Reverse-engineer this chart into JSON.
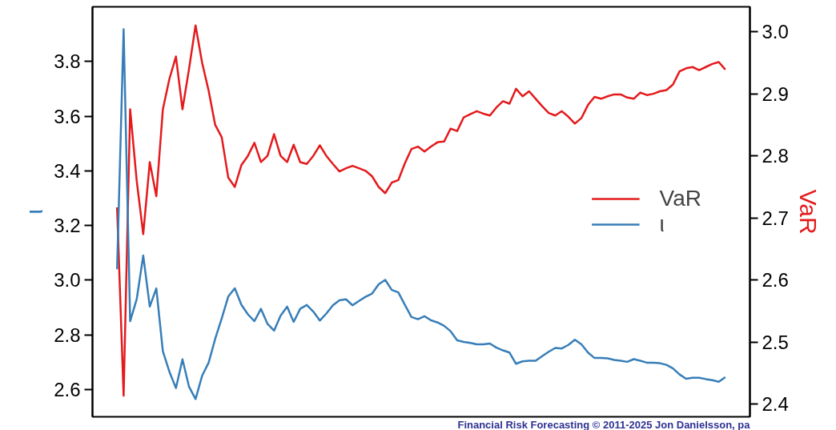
{
  "chart_data": {
    "type": "line",
    "ylabel": "ι",
    "y2label": "VaR",
    "ylim": [
      2.5,
      4.0
    ],
    "yticks": [
      2.6,
      2.8,
      {
        "value": 3.0,
        "label": "3.0"
      },
      3.2,
      3.4,
      3.6,
      3.8
    ],
    "y2lim": [
      2.38,
      3.04
    ],
    "y2ticks": [
      2.4,
      2.5,
      2.6,
      2.7,
      2.8,
      2.9,
      {
        "value": 3.0,
        "label": "3.0"
      }
    ],
    "tick_labels": "y",
    "legend": "right",
    "annotations": [
      "Financial Risk Forecasting © 2011-2025 Jon Danielsson, pa"
    ],
    "categories": [
      null,
      null,
      null,
      null,
      null,
      null,
      null,
      null,
      null,
      null,
      null,
      null,
      null,
      null,
      null,
      null,
      null,
      null,
      null,
      null,
      null,
      null,
      null,
      null,
      null,
      null,
      null,
      null,
      null,
      null,
      null,
      null,
      null,
      null,
      null,
      null,
      null,
      null,
      null,
      null,
      null,
      null,
      null,
      null,
      null,
      null,
      null,
      null,
      null,
      null,
      null,
      null,
      null,
      null,
      null,
      null,
      null,
      null,
      null,
      null,
      null,
      null,
      null,
      null,
      null,
      null,
      null,
      null,
      null,
      null,
      null,
      null,
      null,
      null,
      null,
      null,
      null,
      null,
      null,
      null,
      null,
      null,
      null,
      null,
      null,
      null,
      null,
      null,
      null,
      null,
      null,
      null,
      null,
      null
    ],
    "series": [
      {
        "name": "VaR",
        "color": "#e41a1c",
        "axis": "y2",
        "values": [
          2.717,
          2.414,
          2.875,
          2.76,
          2.674,
          2.79,
          2.735,
          2.875,
          2.924,
          2.96,
          2.875,
          2.94,
          3.01,
          2.95,
          2.905,
          2.85,
          2.83,
          2.765,
          2.75,
          2.785,
          2.8,
          2.821,
          2.79,
          2.8,
          2.835,
          2.8,
          2.79,
          2.818,
          2.79,
          2.787,
          2.8,
          2.817,
          2.8,
          2.787,
          2.775,
          2.78,
          2.784,
          2.78,
          2.776,
          2.767,
          2.75,
          2.74,
          2.757,
          2.761,
          2.788,
          2.811,
          2.815,
          2.807,
          2.815,
          2.822,
          2.823,
          2.844,
          2.84,
          2.862,
          2.867,
          2.872,
          2.868,
          2.865,
          2.878,
          2.888,
          2.884,
          2.908,
          2.896,
          2.904,
          2.892,
          2.88,
          2.869,
          2.865,
          2.872,
          2.863,
          2.852,
          2.861,
          2.882,
          2.895,
          2.892,
          2.896,
          2.899,
          2.899,
          2.894,
          2.892,
          2.902,
          2.898,
          2.9,
          2.904,
          2.906,
          2.915,
          2.936,
          2.941,
          2.943,
          2.938,
          2.943,
          2.948,
          2.951,
          2.939
        ]
      },
      {
        "name": "ι",
        "color": "#377eb8",
        "values": [
          3.04,
          3.918,
          2.85,
          2.93,
          3.09,
          2.903,
          2.97,
          2.74,
          2.665,
          2.605,
          2.71,
          2.61,
          2.565,
          2.65,
          2.698,
          2.785,
          2.86,
          2.94,
          2.97,
          2.91,
          2.875,
          2.85,
          2.895,
          2.84,
          2.815,
          2.87,
          2.903,
          2.847,
          2.895,
          2.909,
          2.885,
          2.852,
          2.878,
          2.908,
          2.926,
          2.93,
          2.908,
          2.924,
          2.939,
          2.951,
          2.985,
          3.001,
          2.964,
          2.955,
          2.91,
          2.865,
          2.857,
          2.868,
          2.853,
          2.845,
          2.833,
          2.813,
          2.78,
          2.774,
          2.77,
          2.765,
          2.765,
          2.768,
          2.753,
          2.743,
          2.735,
          2.694,
          2.703,
          2.705,
          2.705,
          2.722,
          2.738,
          2.752,
          2.75,
          2.763,
          2.782,
          2.765,
          2.735,
          2.715,
          2.715,
          2.714,
          2.708,
          2.705,
          2.701,
          2.711,
          2.705,
          2.698,
          2.698,
          2.696,
          2.69,
          2.677,
          2.655,
          2.639,
          2.643,
          2.643,
          2.638,
          2.634,
          2.628,
          2.645
        ]
      }
    ]
  }
}
